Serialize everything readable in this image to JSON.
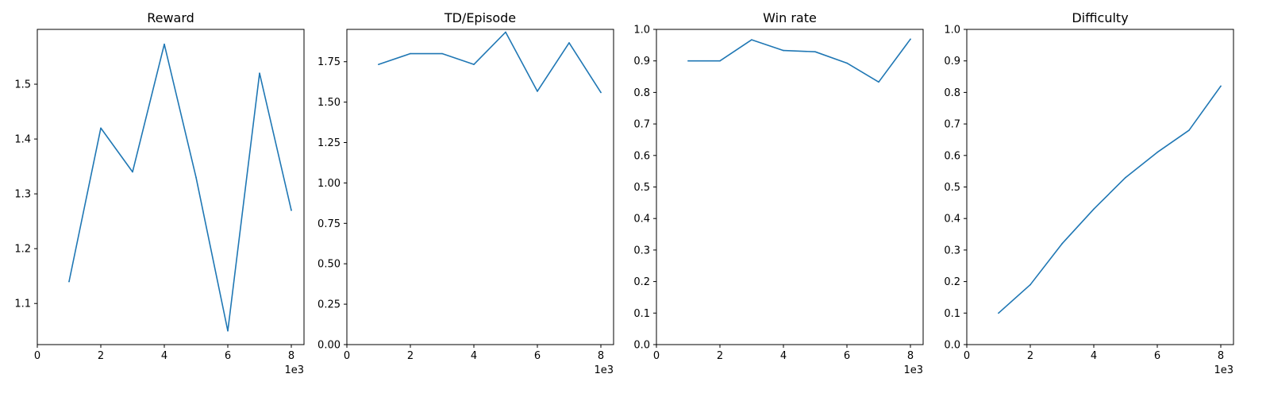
{
  "chart_data": [
    {
      "type": "line",
      "title": "Reward",
      "xlabel": "",
      "ylabel": "",
      "x": [
        1000,
        2000,
        3000,
        4000,
        5000,
        6000,
        7000,
        8000
      ],
      "series": [
        {
          "values": [
            1.14,
            1.42,
            1.34,
            1.573,
            1.33,
            1.05,
            1.52,
            1.27
          ],
          "color": "#1f77b4"
        }
      ],
      "xlim": [
        0,
        8400
      ],
      "ylim": [
        1.025,
        1.6
      ],
      "xticks": [
        0,
        2000,
        4000,
        6000,
        8000
      ],
      "xtick_labels": [
        "0",
        "2",
        "4",
        "6",
        "8"
      ],
      "x_offset_label": "1e3",
      "yticks": [
        1.1,
        1.2,
        1.3,
        1.4,
        1.5
      ],
      "ytick_labels": [
        "1.1",
        "1.2",
        "1.3",
        "1.4",
        "1.5"
      ],
      "grid": false
    },
    {
      "type": "line",
      "title": "TD/Episode",
      "xlabel": "",
      "ylabel": "",
      "x": [
        1000,
        2000,
        3000,
        4000,
        5000,
        6000,
        7000,
        8000
      ],
      "series": [
        {
          "values": [
            1.733,
            1.8,
            1.8,
            1.733,
            1.933,
            1.567,
            1.867,
            1.56
          ],
          "color": "#1f77b4"
        }
      ],
      "xlim": [
        0,
        8400
      ],
      "ylim": [
        0,
        1.95
      ],
      "xticks": [
        0,
        2000,
        4000,
        6000,
        8000
      ],
      "xtick_labels": [
        "0",
        "2",
        "4",
        "6",
        "8"
      ],
      "x_offset_label": "1e3",
      "yticks": [
        0,
        0.25,
        0.5,
        0.75,
        1.0,
        1.25,
        1.5,
        1.75
      ],
      "ytick_labels": [
        "0.00",
        "0.25",
        "0.50",
        "0.75",
        "1.00",
        "1.25",
        "1.50",
        "1.75"
      ],
      "grid": false
    },
    {
      "type": "line",
      "title": "Win rate",
      "xlabel": "",
      "ylabel": "",
      "x": [
        1000,
        2000,
        3000,
        4000,
        5000,
        6000,
        7000,
        8000
      ],
      "series": [
        {
          "values": [
            0.9,
            0.9,
            0.967,
            0.933,
            0.929,
            0.893,
            0.833,
            0.969
          ],
          "color": "#1f77b4"
        }
      ],
      "xlim": [
        0,
        8400
      ],
      "ylim": [
        0,
        1.0
      ],
      "xticks": [
        0,
        2000,
        4000,
        6000,
        8000
      ],
      "xtick_labels": [
        "0",
        "2",
        "4",
        "6",
        "8"
      ],
      "x_offset_label": "1e3",
      "yticks": [
        0,
        0.1,
        0.2,
        0.3,
        0.4,
        0.5,
        0.6,
        0.7,
        0.8,
        0.9,
        1.0
      ],
      "ytick_labels": [
        "0.0",
        "0.1",
        "0.2",
        "0.3",
        "0.4",
        "0.5",
        "0.6",
        "0.7",
        "0.8",
        "0.9",
        "1.0"
      ],
      "grid": false
    },
    {
      "type": "line",
      "title": "Difficulty",
      "xlabel": "",
      "ylabel": "",
      "x": [
        1000,
        2000,
        3000,
        4000,
        5000,
        6000,
        7000,
        8000
      ],
      "series": [
        {
          "values": [
            0.1,
            0.19,
            0.32,
            0.43,
            0.53,
            0.61,
            0.68,
            0.82
          ],
          "color": "#1f77b4"
        }
      ],
      "xlim": [
        0,
        8400
      ],
      "ylim": [
        0,
        1.0
      ],
      "xticks": [
        0,
        2000,
        4000,
        6000,
        8000
      ],
      "xtick_labels": [
        "0",
        "2",
        "4",
        "6",
        "8"
      ],
      "x_offset_label": "1e3",
      "yticks": [
        0,
        0.1,
        0.2,
        0.3,
        0.4,
        0.5,
        0.6,
        0.7,
        0.8,
        0.9,
        1.0
      ],
      "ytick_labels": [
        "0.0",
        "0.1",
        "0.2",
        "0.3",
        "0.4",
        "0.5",
        "0.6",
        "0.7",
        "0.8",
        "0.9",
        "1.0"
      ],
      "grid": false
    }
  ]
}
